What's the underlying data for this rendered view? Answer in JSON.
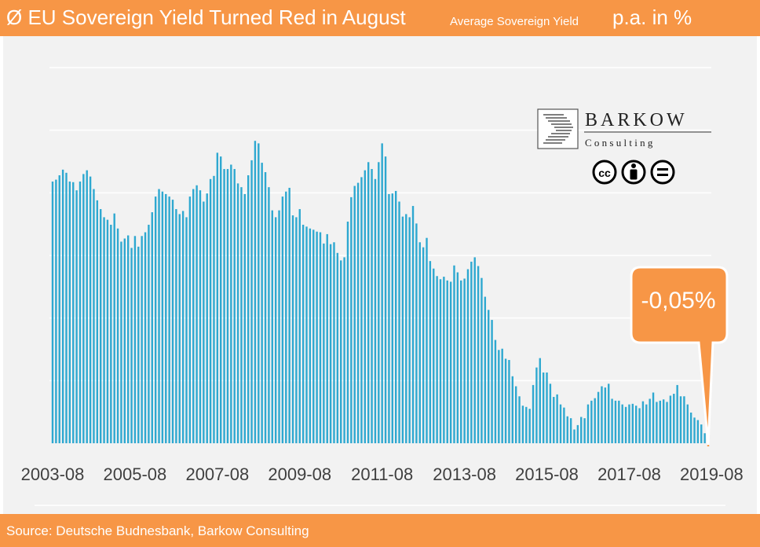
{
  "header": {
    "title": "Ø EU Sovereign Yield Turned Red in August",
    "subtitle": "Average Sovereign Yield",
    "unit": "p.a. in %"
  },
  "footer": {
    "source": "Source: Deutsche Budnesbank, Barkow Consulting"
  },
  "logo": {
    "name": "BARKOW",
    "tagline": "C o n s u l t i n g",
    "license_icons": [
      "cc-icon",
      "by-icon",
      "nd-icon"
    ]
  },
  "callout": {
    "text": "-0,05%"
  },
  "colors": {
    "bar": "#2EA8D0",
    "accent": "#F79646",
    "panel": "#f2f2f2",
    "grid": "#ffffff"
  },
  "chart_data": {
    "type": "bar",
    "title": "Ø EU Sovereign Yield Turned Red in August",
    "subtitle": "Average Sovereign Yield",
    "ylabel": "p.a. in %",
    "ylim": [
      0,
      6
    ],
    "y_gridlines": [
      1,
      2,
      3,
      4,
      5,
      6
    ],
    "y_tick_labels_shown": false,
    "grid": true,
    "x_tick_labels": [
      "2003-08",
      "2005-08",
      "2007-08",
      "2009-08",
      "2011-08",
      "2013-08",
      "2015-08",
      "2017-08",
      "2019-08"
    ],
    "x_start": "2003-08",
    "x_end": "2019-08",
    "frequency": "monthly",
    "values": [
      4.18,
      4.21,
      4.28,
      4.37,
      4.32,
      4.18,
      4.17,
      4.04,
      4.18,
      4.3,
      4.36,
      4.26,
      4.06,
      3.88,
      3.74,
      3.61,
      3.57,
      3.49,
      3.67,
      3.43,
      3.22,
      3.27,
      3.32,
      3.12,
      3.31,
      3.14,
      3.31,
      3.37,
      3.49,
      3.69,
      3.94,
      4.06,
      4.02,
      3.98,
      3.94,
      3.89,
      3.74,
      3.66,
      3.71,
      3.61,
      3.94,
      4.06,
      4.12,
      4.04,
      3.86,
      3.99,
      4.22,
      4.27,
      4.64,
      4.58,
      4.38,
      4.38,
      4.45,
      4.38,
      4.15,
      4.09,
      3.98,
      4.28,
      4.52,
      4.83,
      4.79,
      4.48,
      4.33,
      4.09,
      3.72,
      3.61,
      3.72,
      3.94,
      4.02,
      4.08,
      3.64,
      3.61,
      3.74,
      3.49,
      3.46,
      3.43,
      3.41,
      3.38,
      3.37,
      3.19,
      3.34,
      3.18,
      3.21,
      3.04,
      2.92,
      2.97,
      3.54,
      3.93,
      4.11,
      4.16,
      4.25,
      4.36,
      4.49,
      4.38,
      4.22,
      4.49,
      4.79,
      4.58,
      3.98,
      3.99,
      4.03,
      3.86,
      3.62,
      3.66,
      3.61,
      3.79,
      3.51,
      3.21,
      3.13,
      3.28,
      2.91,
      2.79,
      2.67,
      2.62,
      2.66,
      2.6,
      2.58,
      2.84,
      2.73,
      2.6,
      2.63,
      2.78,
      2.9,
      2.97,
      2.83,
      2.64,
      2.34,
      2.13,
      1.97,
      1.65,
      1.49,
      1.51,
      1.35,
      1.33,
      1.07,
      0.91,
      0.75,
      0.6,
      0.58,
      0.55,
      0.93,
      1.21,
      1.36,
      1.13,
      1.13,
      0.95,
      0.74,
      0.78,
      0.62,
      0.57,
      0.43,
      0.4,
      0.22,
      0.29,
      0.42,
      0.4,
      0.62,
      0.68,
      0.72,
      0.82,
      0.91,
      0.89,
      0.95,
      0.71,
      0.68,
      0.68,
      0.62,
      0.58,
      0.62,
      0.63,
      0.6,
      0.56,
      0.67,
      0.62,
      0.71,
      0.81,
      0.66,
      0.68,
      0.7,
      0.66,
      0.76,
      0.79,
      0.93,
      0.75,
      0.75,
      0.62,
      0.49,
      0.41,
      0.37,
      0.3,
      0.16,
      -0.05
    ],
    "annotation": {
      "text": "-0,05%",
      "points_to": "2019-08",
      "value": -0.05
    }
  }
}
